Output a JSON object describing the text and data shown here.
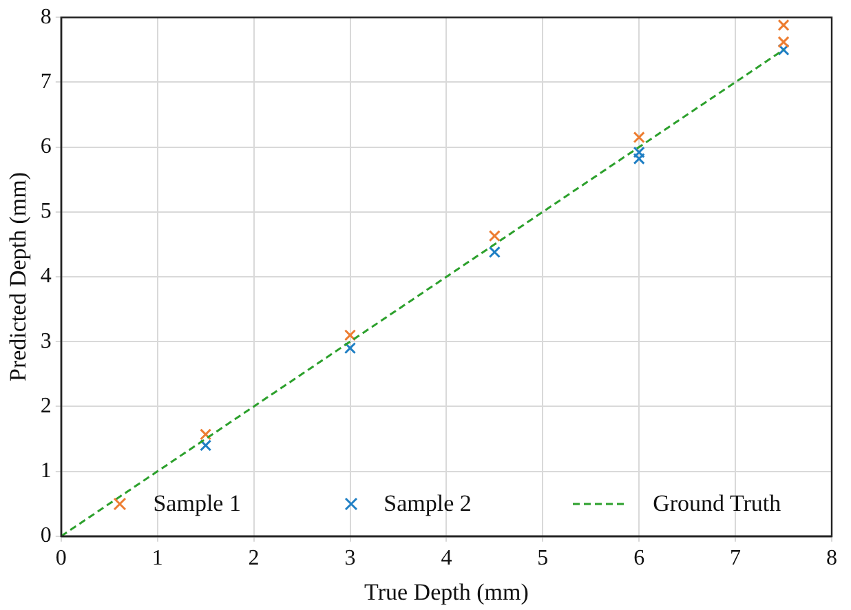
{
  "chart_data": {
    "type": "scatter",
    "xlabel": "True Depth (mm)",
    "ylabel": "Predicted Depth (mm)",
    "xlim": [
      0,
      8
    ],
    "xticks": [
      0,
      1,
      2,
      3,
      4,
      5,
      6,
      7,
      8
    ],
    "ylim": [
      0,
      8
    ],
    "yticks": [
      0,
      1,
      2,
      3,
      4,
      5,
      6,
      7,
      8
    ],
    "grid": true,
    "legend": "bottom",
    "marker": "cross",
    "series": [
      {
        "name": "Sample 1",
        "color": "#ed7d31",
        "x": [
          1.5,
          3,
          4.5,
          6,
          7.5,
          7.5
        ],
        "values": [
          1.57,
          3.1,
          4.63,
          6.15,
          7.62,
          7.88
        ]
      },
      {
        "name": "Sample 2",
        "color": "#1f7fc4",
        "x": [
          1.5,
          3,
          4.5,
          6,
          6,
          7.5
        ],
        "values": [
          1.4,
          2.9,
          4.38,
          5.82,
          5.92,
          7.5
        ]
      },
      {
        "name": "Ground Truth",
        "type": "line",
        "color": "#2ca02c",
        "line_style": "dashed",
        "marker": "none",
        "x": [
          0,
          7.5
        ],
        "values": [
          0,
          7.5
        ]
      }
    ]
  }
}
